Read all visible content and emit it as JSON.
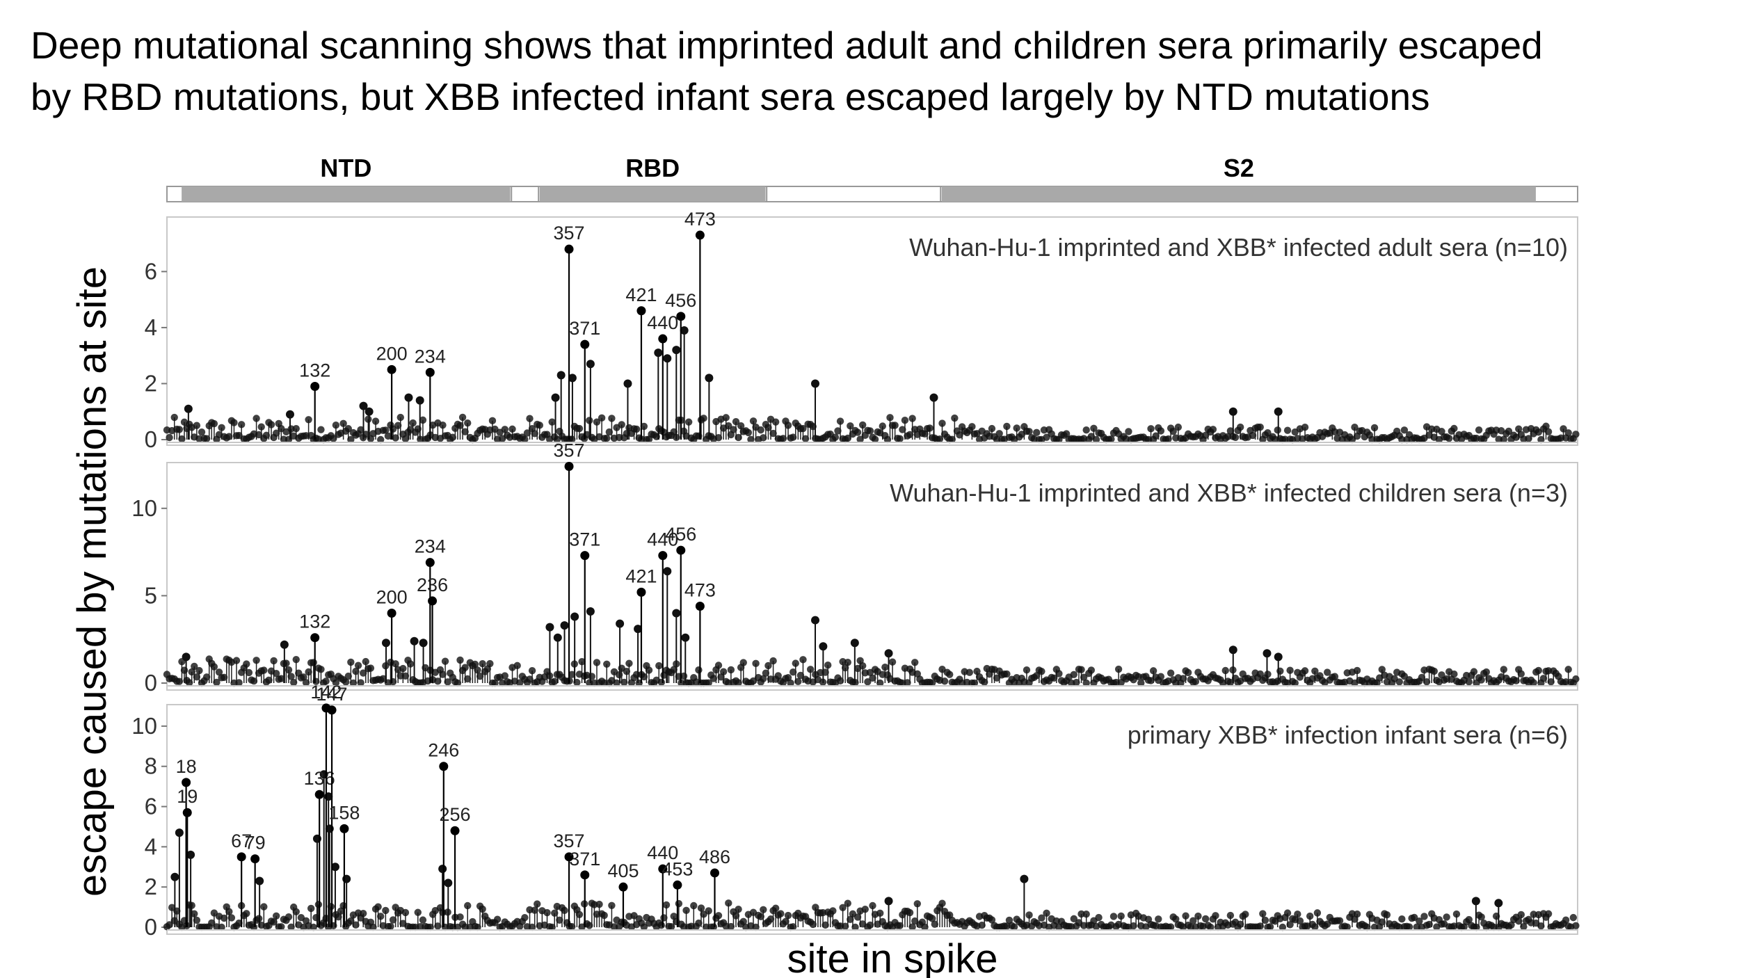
{
  "headline": {
    "line1": "Deep mutational scanning shows that imprinted adult and children sera primarily escaped",
    "line2": "by RBD mutations, but XBB infected infant sera escaped largely by NTD mutations"
  },
  "chart_data": {
    "type": "scatter",
    "ylabel": "escape caused by mutations at site",
    "xlabel": "site in spike",
    "x_range": [
      1,
      1250
    ],
    "domains": [
      {
        "name": "NTD",
        "start": 14,
        "end": 305
      },
      {
        "name": "",
        "start": 306,
        "end": 330
      },
      {
        "name": "RBD",
        "start": 331,
        "end": 531
      },
      {
        "name": "",
        "start": 532,
        "end": 686
      },
      {
        "name": "S2",
        "start": 687,
        "end": 1213
      }
    ],
    "panels": [
      {
        "title": "Wuhan-Hu-1 imprinted and XBB* infected adult sera (n=10)",
        "ylim": [
          0,
          7.5
        ],
        "yticks": [
          0,
          2,
          4,
          6
        ],
        "labeled_sites": [
          {
            "site": 132,
            "value": 1.9
          },
          {
            "site": 200,
            "value": 2.5
          },
          {
            "site": 234,
            "value": 2.4
          },
          {
            "site": 357,
            "value": 6.8
          },
          {
            "site": 371,
            "value": 3.4
          },
          {
            "site": 421,
            "value": 4.6
          },
          {
            "site": 440,
            "value": 3.6
          },
          {
            "site": 456,
            "value": 4.4
          },
          {
            "site": 473,
            "value": 7.3
          }
        ],
        "other_peaks": [
          {
            "site": 345,
            "value": 1.5
          },
          {
            "site": 350,
            "value": 2.3
          },
          {
            "site": 360,
            "value": 2.2
          },
          {
            "site": 376,
            "value": 2.7
          },
          {
            "site": 409,
            "value": 2.0
          },
          {
            "site": 436,
            "value": 3.1
          },
          {
            "site": 444,
            "value": 2.9
          },
          {
            "site": 452,
            "value": 3.2
          },
          {
            "site": 459,
            "value": 3.9
          },
          {
            "site": 481,
            "value": 2.2
          },
          {
            "site": 575,
            "value": 2.0
          },
          {
            "site": 680,
            "value": 1.5
          },
          {
            "site": 945,
            "value": 1.0
          },
          {
            "site": 985,
            "value": 1.0
          },
          {
            "site": 175,
            "value": 1.2
          },
          {
            "site": 215,
            "value": 1.5
          },
          {
            "site": 225,
            "value": 1.4
          },
          {
            "site": 180,
            "value": 1.0
          },
          {
            "site": 20,
            "value": 1.1
          },
          {
            "site": 110,
            "value": 0.9
          }
        ],
        "baseline_max": 0.8
      },
      {
        "title": "Wuhan-Hu-1 imprinted and XBB* infected children sera (n=3)",
        "ylim": [
          0,
          12.5
        ],
        "yticks": [
          0,
          5,
          10
        ],
        "labeled_sites": [
          {
            "site": 132,
            "value": 2.6
          },
          {
            "site": 200,
            "value": 4.0
          },
          {
            "site": 234,
            "value": 6.9
          },
          {
            "site": 236,
            "value": 4.7
          },
          {
            "site": 357,
            "value": 12.4
          },
          {
            "site": 371,
            "value": 7.3
          },
          {
            "site": 421,
            "value": 5.2
          },
          {
            "site": 440,
            "value": 7.3
          },
          {
            "site": 456,
            "value": 7.6
          },
          {
            "site": 473,
            "value": 4.4
          }
        ],
        "other_peaks": [
          {
            "site": 340,
            "value": 3.2
          },
          {
            "site": 347,
            "value": 2.6
          },
          {
            "site": 353,
            "value": 3.3
          },
          {
            "site": 362,
            "value": 3.8
          },
          {
            "site": 376,
            "value": 4.1
          },
          {
            "site": 402,
            "value": 3.4
          },
          {
            "site": 418,
            "value": 3.1
          },
          {
            "site": 444,
            "value": 6.4
          },
          {
            "site": 452,
            "value": 4.0
          },
          {
            "site": 460,
            "value": 2.6
          },
          {
            "site": 575,
            "value": 3.6
          },
          {
            "site": 582,
            "value": 2.1
          },
          {
            "site": 610,
            "value": 2.3
          },
          {
            "site": 640,
            "value": 1.7
          },
          {
            "site": 945,
            "value": 1.9
          },
          {
            "site": 975,
            "value": 1.7
          },
          {
            "site": 985,
            "value": 1.5
          },
          {
            "site": 195,
            "value": 2.3
          },
          {
            "site": 220,
            "value": 2.4
          },
          {
            "site": 228,
            "value": 2.3
          },
          {
            "site": 105,
            "value": 2.2
          },
          {
            "site": 18,
            "value": 1.5
          }
        ],
        "baseline_max": 1.4
      },
      {
        "title": "primary XBB* infection infant sera (n=6)",
        "ylim": [
          0,
          11
        ],
        "yticks": [
          0,
          2,
          4,
          6,
          8,
          10
        ],
        "labeled_sites": [
          {
            "site": 18,
            "value": 7.2
          },
          {
            "site": 19,
            "value": 5.7
          },
          {
            "site": 67,
            "value": 3.5
          },
          {
            "site": 79,
            "value": 3.4
          },
          {
            "site": 136,
            "value": 6.6
          },
          {
            "site": 142,
            "value": 10.9
          },
          {
            "site": 147,
            "value": 10.8
          },
          {
            "site": 158,
            "value": 4.9
          },
          {
            "site": 246,
            "value": 8.0
          },
          {
            "site": 256,
            "value": 4.8
          },
          {
            "site": 357,
            "value": 3.5
          },
          {
            "site": 371,
            "value": 2.6
          },
          {
            "site": 405,
            "value": 2.0
          },
          {
            "site": 440,
            "value": 2.9
          },
          {
            "site": 453,
            "value": 2.1
          },
          {
            "site": 486,
            "value": 2.7
          }
        ],
        "other_peaks": [
          {
            "site": 12,
            "value": 4.7
          },
          {
            "site": 22,
            "value": 3.6
          },
          {
            "site": 8,
            "value": 2.5
          },
          {
            "site": 140,
            "value": 7.6
          },
          {
            "site": 144,
            "value": 6.5
          },
          {
            "site": 145,
            "value": 4.9
          },
          {
            "site": 150,
            "value": 3.0
          },
          {
            "site": 134,
            "value": 4.4
          },
          {
            "site": 160,
            "value": 2.4
          },
          {
            "site": 245,
            "value": 2.9
          },
          {
            "site": 250,
            "value": 2.2
          },
          {
            "site": 83,
            "value": 2.3
          },
          {
            "site": 640,
            "value": 1.3
          },
          {
            "site": 760,
            "value": 2.4
          },
          {
            "site": 1160,
            "value": 1.3
          },
          {
            "site": 1180,
            "value": 1.2
          }
        ],
        "baseline_max": 1.2
      }
    ]
  }
}
